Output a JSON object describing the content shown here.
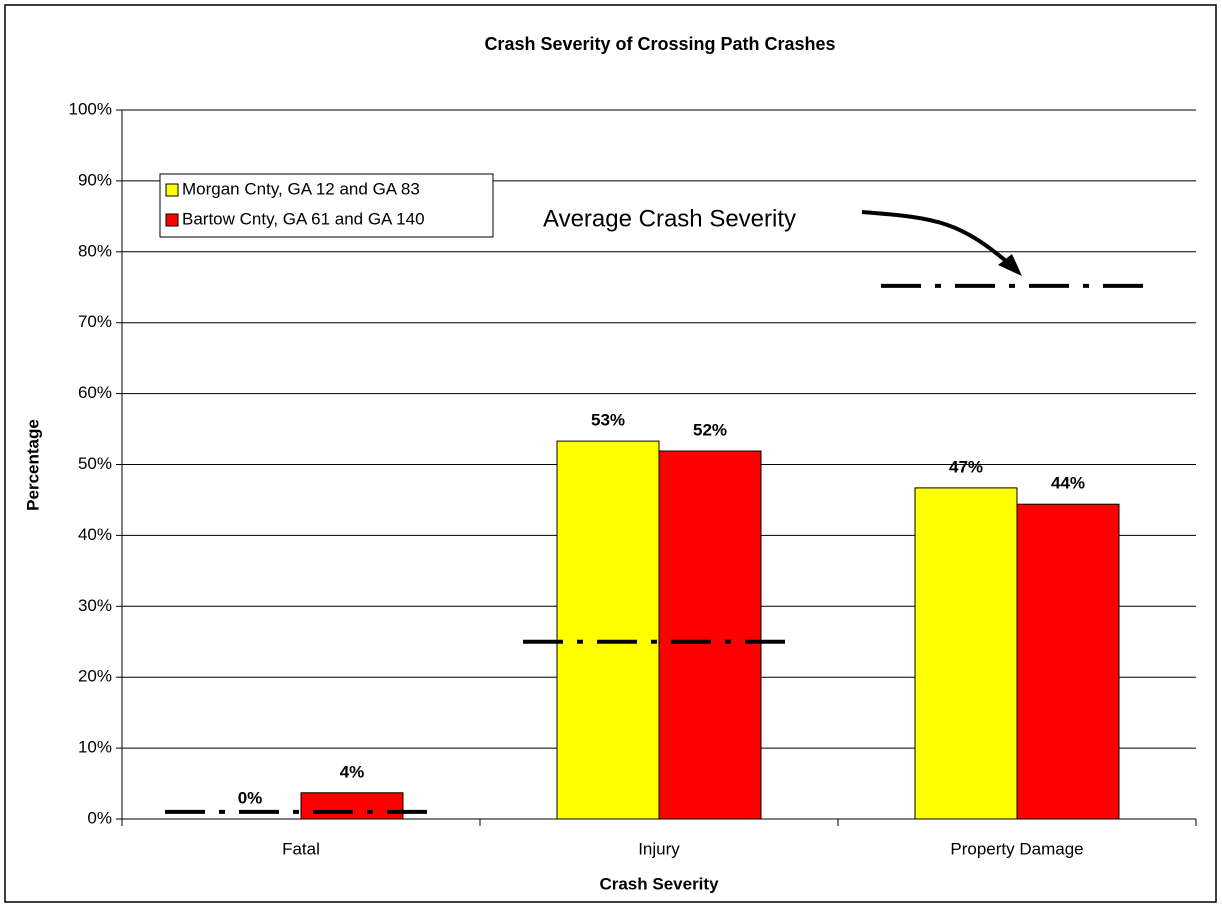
{
  "chart_data": {
    "type": "bar",
    "title": "Crash Severity of Crossing Path Crashes",
    "x_label": "Crash Severity",
    "y_label": "Percentage",
    "categories": [
      "Fatal",
      "Injury",
      "Property Damage"
    ],
    "series": [
      {
        "name": "Morgan Cnty, GA 12 and GA 83",
        "color": "#ffff00",
        "values": [
          0,
          53.3,
          46.7
        ],
        "value_labels": [
          "0%",
          "53%",
          "47%"
        ]
      },
      {
        "name": "Bartow Cnty, GA 61 and GA 140",
        "color": "#ff0000",
        "values": [
          3.7,
          51.9,
          44.4
        ],
        "value_labels": [
          "4%",
          "52%",
          "44%"
        ]
      }
    ],
    "average": {
      "label": "Average Crash Severity",
      "values": [
        1,
        25,
        75.2
      ]
    },
    "ylim": [
      0,
      100
    ],
    "yticks": [
      {
        "value": 0,
        "label": "0%"
      },
      {
        "value": 10,
        "label": "10%"
      },
      {
        "value": 20,
        "label": "20%"
      },
      {
        "value": 30,
        "label": "30%"
      },
      {
        "value": 40,
        "label": "40%"
      },
      {
        "value": 50,
        "label": "50%"
      },
      {
        "value": 60,
        "label": "60%"
      },
      {
        "value": 70,
        "label": "70%"
      },
      {
        "value": 80,
        "label": "80%"
      },
      {
        "value": 90,
        "label": "90%"
      },
      {
        "value": 100,
        "label": "100%"
      }
    ],
    "grid": true,
    "legend": "upper left"
  }
}
